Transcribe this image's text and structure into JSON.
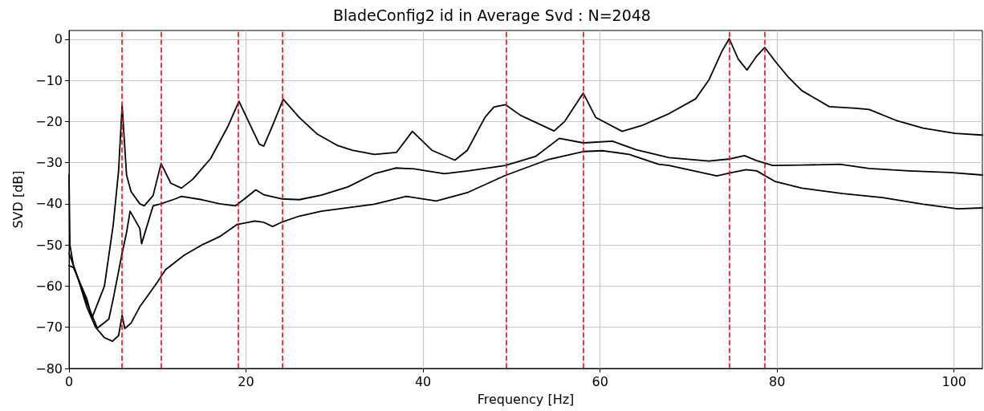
{
  "chart_data": {
    "type": "line",
    "title": "BladeConfig2 id in Average Svd : N=2048",
    "xlabel": "Frequency [Hz]",
    "ylabel": "SVD [dB]",
    "xlim": [
      0,
      103.2
    ],
    "xticks": [
      0,
      20,
      40,
      60,
      80,
      100
    ],
    "ylim": [
      -80,
      2.1
    ],
    "yticks": [
      -80,
      -70,
      -60,
      -50,
      -40,
      -30,
      -20,
      -10,
      0
    ],
    "grid": true,
    "marker": "none",
    "line_style": "solid",
    "series": [
      {
        "color": "#000000",
        "x": [
          0,
          0.1,
          0.5,
          1,
          2,
          2.6,
          4,
          5,
          5.6,
          6.0,
          6.5,
          7,
          8,
          8.5,
          9.5,
          10.4,
          11.5,
          12.7,
          14,
          16,
          18,
          19.2,
          20.5,
          21.5,
          22,
          23,
          24.2,
          26,
          28,
          30.3,
          32,
          34.5,
          37,
          38.8,
          41,
          43.6,
          45,
          47,
          48,
          49.3,
          51,
          53,
          54.8,
          56,
          58.1,
          59.5,
          62.5,
          64.7,
          67.8,
          70.8,
          72.3,
          73.8,
          74.6,
          75.6,
          76.6,
          77.7,
          78.6,
          79.8,
          81.3,
          82.8,
          85.9,
          88.9,
          90.4,
          93.4,
          96.5,
          100.1,
          103.2
        ],
        "values": [
          -33,
          -50,
          -55,
          -58,
          -63,
          -67.7,
          -60,
          -45,
          -32,
          -16.1,
          -33,
          -37,
          -40,
          -40.5,
          -38,
          -30.2,
          -35,
          -36.2,
          -34,
          -29,
          -21,
          -15.1,
          -21,
          -25.5,
          -26,
          -21,
          -14.6,
          -19,
          -23,
          -25.8,
          -27,
          -28,
          -27.5,
          -22.4,
          -27,
          -29.4,
          -27,
          -19,
          -16.5,
          -15.9,
          -18.5,
          -20.5,
          -22.3,
          -20,
          -13.1,
          -19,
          -22.4,
          -21,
          -18.1,
          -14.5,
          -9.9,
          -2.8,
          0.1,
          -4.8,
          -7.5,
          -4.1,
          -2,
          -5.4,
          -9.3,
          -12.5,
          -16.4,
          -16.8,
          -17.1,
          -19.7,
          -21.6,
          -22.9,
          -23.3
        ]
      },
      {
        "color": "#000000",
        "x": [
          0,
          0.5,
          1,
          2,
          3.2,
          4.5,
          5,
          6,
          6.5,
          6.9,
          8,
          8.2,
          9,
          9.5,
          10.4,
          12,
          12.7,
          15,
          17,
          18.8,
          20,
          21.1,
          22,
          24,
          26,
          28.5,
          31.5,
          34.5,
          36.9,
          39,
          42.4,
          45.1,
          49.3,
          52.7,
          55.4,
          58.1,
          61.4,
          64.1,
          67.8,
          72.3,
          74.7,
          76.3,
          77.7,
          79.5,
          82.8,
          87.1,
          90.4,
          94.9,
          99.5,
          103.2
        ],
        "values": [
          -52,
          -55,
          -58,
          -64,
          -70.2,
          -68,
          -63,
          -52,
          -47,
          -41.8,
          -46,
          -49.7,
          -44,
          -40.5,
          -40,
          -38.8,
          -38.2,
          -39,
          -40,
          -40.5,
          -38.5,
          -36.6,
          -37.8,
          -38.8,
          -39,
          -37.9,
          -35.9,
          -32.7,
          -31.3,
          -31.5,
          -32.7,
          -32,
          -30.7,
          -28.5,
          -24.1,
          -25.2,
          -24.8,
          -26.9,
          -28.8,
          -29.6,
          -29.1,
          -28.3,
          -29.5,
          -30.7,
          -30.6,
          -30.4,
          -31.4,
          -32,
          -32.4,
          -33
        ]
      },
      {
        "color": "#000000",
        "x": [
          0,
          0.5,
          1,
          2,
          3,
          4,
          4.9,
          5.6,
          6.0,
          6.3,
          7,
          8,
          9,
          10,
          10.9,
          13,
          15,
          17,
          19,
          21,
          22,
          23,
          24,
          26,
          28.5,
          34.5,
          38.1,
          41.5,
          45.1,
          49.3,
          54.2,
          58.1,
          60.3,
          63.3,
          66.6,
          67.8,
          73.2,
          74.7,
          76.5,
          77.7,
          79.8,
          82.8,
          87.4,
          91.9,
          96.5,
          100.4,
          103.2
        ],
        "values": [
          -55,
          -55.5,
          -58,
          -65,
          -70,
          -72.5,
          -73.4,
          -72,
          -67.1,
          -70.3,
          -69,
          -65,
          -62,
          -59,
          -56,
          -52.5,
          -50,
          -48,
          -45,
          -44.2,
          -44.5,
          -45.5,
          -44.5,
          -43,
          -41.8,
          -40.1,
          -38.2,
          -39.3,
          -37.2,
          -33.1,
          -29.2,
          -27.3,
          -27.1,
          -28,
          -30.4,
          -30.7,
          -33.2,
          -32.5,
          -31.7,
          -32,
          -34.6,
          -36.2,
          -37.5,
          -38.5,
          -40.1,
          -41.2,
          -41
        ]
      }
    ],
    "ref_lines": [
      {
        "axis": "x",
        "value": 6.0,
        "color": "#ff0000",
        "line_style": "dashed"
      },
      {
        "axis": "x",
        "value": 10.4,
        "color": "#ff0000",
        "line_style": "dashed"
      },
      {
        "axis": "x",
        "value": 19.1,
        "color": "#ff0000",
        "line_style": "dashed"
      },
      {
        "axis": "x",
        "value": 24.1,
        "color": "#ff0000",
        "line_style": "dashed"
      },
      {
        "axis": "x",
        "value": 49.4,
        "color": "#ff0000",
        "line_style": "dashed"
      },
      {
        "axis": "x",
        "value": 58.1,
        "color": "#ff0000",
        "line_style": "dashed"
      },
      {
        "axis": "x",
        "value": 74.6,
        "color": "#ff0000",
        "line_style": "dashed"
      },
      {
        "axis": "x",
        "value": 78.6,
        "color": "#ff0000",
        "line_style": "dashed"
      }
    ]
  }
}
